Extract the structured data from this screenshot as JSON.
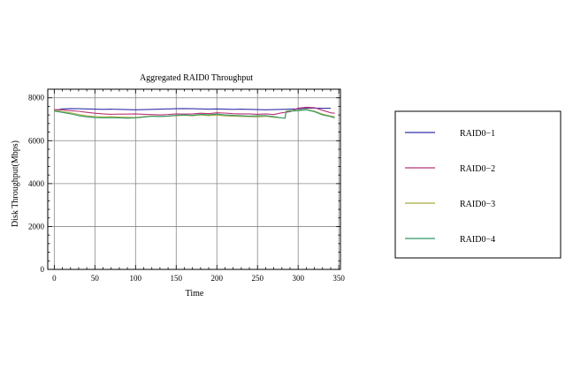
{
  "chart_data": {
    "type": "line",
    "title": "Aggregated RAID0  Throughput",
    "xlabel": "Time",
    "ylabel": "Disk Throughput(Mbps)",
    "xlim": [
      -8,
      352
    ],
    "ylim": [
      0,
      8400
    ],
    "xticks": [
      0,
      50,
      100,
      150,
      200,
      250,
      300,
      350
    ],
    "yticks": [
      0,
      2000,
      4000,
      6000,
      8000
    ],
    "grid": true,
    "legend": "right",
    "series": [
      {
        "name": "RAID0−1",
        "color": "#3333aa",
        "x": [
          0,
          10,
          20,
          30,
          40,
          50,
          60,
          70,
          80,
          90,
          100,
          110,
          120,
          130,
          140,
          150,
          160,
          170,
          180,
          190,
          200,
          210,
          220,
          230,
          240,
          250,
          260,
          270,
          280,
          290,
          300,
          310,
          320,
          330,
          340
        ],
        "values": [
          7420,
          7480,
          7500,
          7490,
          7480,
          7470,
          7460,
          7470,
          7460,
          7450,
          7440,
          7450,
          7460,
          7470,
          7480,
          7490,
          7500,
          7490,
          7480,
          7470,
          7480,
          7470,
          7460,
          7470,
          7460,
          7450,
          7440,
          7450,
          7460,
          7470,
          7480,
          7520,
          7520,
          7510,
          7510
        ]
      },
      {
        "name": "RAID0−2",
        "color": "#bb3377",
        "x": [
          0,
          10,
          20,
          30,
          40,
          50,
          60,
          70,
          80,
          90,
          100,
          110,
          120,
          130,
          140,
          150,
          160,
          170,
          180,
          190,
          200,
          210,
          220,
          230,
          240,
          250,
          260,
          270,
          280,
          290,
          300,
          310,
          320,
          330,
          340,
          345
        ],
        "values": [
          7450,
          7440,
          7400,
          7370,
          7320,
          7280,
          7250,
          7230,
          7240,
          7240,
          7250,
          7230,
          7220,
          7200,
          7220,
          7250,
          7240,
          7250,
          7280,
          7260,
          7300,
          7290,
          7260,
          7250,
          7250,
          7230,
          7250,
          7220,
          7300,
          7350,
          7520,
          7560,
          7540,
          7420,
          7300,
          7280
        ]
      },
      {
        "name": "RAID0−3",
        "color": "#aaaa44",
        "x": [
          0,
          10,
          20,
          30,
          40,
          50,
          60,
          70,
          80,
          90,
          100,
          110,
          120,
          130,
          140,
          150,
          160,
          170,
          180,
          190,
          200,
          210,
          220,
          230,
          240,
          250,
          260,
          270,
          280,
          284,
          285,
          290,
          300,
          310,
          320,
          330,
          340,
          345
        ],
        "values": [
          7420,
          7360,
          7300,
          7220,
          7160,
          7120,
          7110,
          7120,
          7100,
          7090,
          7080,
          7120,
          7150,
          7130,
          7140,
          7170,
          7190,
          7160,
          7200,
          7170,
          7190,
          7160,
          7140,
          7130,
          7120,
          7110,
          7140,
          7090,
          7060,
          7060,
          7380,
          7400,
          7420,
          7460,
          7380,
          7240,
          7150,
          7120
        ]
      },
      {
        "name": "RAID0−4",
        "color": "#339966",
        "x": [
          0,
          10,
          20,
          30,
          40,
          50,
          60,
          70,
          80,
          90,
          100,
          110,
          120,
          130,
          140,
          150,
          160,
          170,
          180,
          190,
          200,
          210,
          220,
          230,
          240,
          250,
          260,
          270,
          280,
          284,
          285,
          290,
          300,
          310,
          320,
          330,
          340,
          345
        ],
        "values": [
          7380,
          7320,
          7250,
          7170,
          7110,
          7080,
          7060,
          7070,
          7060,
          7050,
          7060,
          7100,
          7140,
          7130,
          7150,
          7180,
          7200,
          7180,
          7230,
          7210,
          7240,
          7200,
          7180,
          7170,
          7150,
          7160,
          7170,
          7120,
          7060,
          7050,
          7350,
          7380,
          7400,
          7440,
          7350,
          7200,
          7120,
          7060
        ]
      }
    ]
  }
}
